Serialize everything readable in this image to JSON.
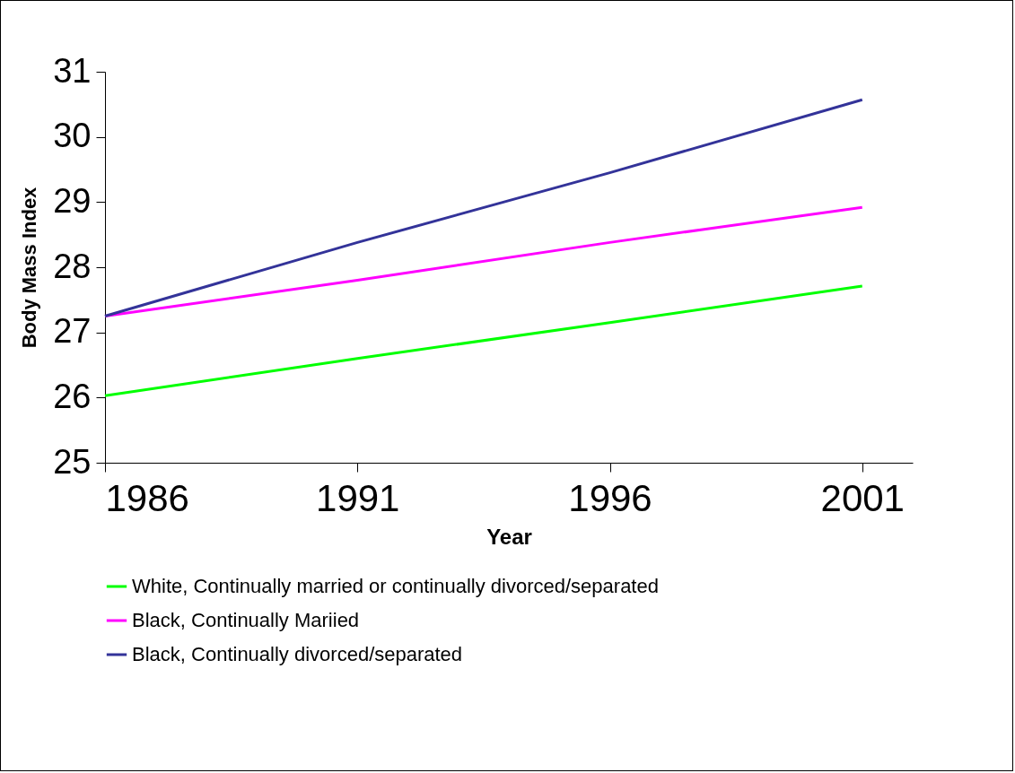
{
  "chart_data": {
    "type": "line",
    "xlabel": "Year",
    "ylabel": "Body Mass Index",
    "x": [
      1986,
      1991,
      1996,
      2001
    ],
    "xlim": [
      1986,
      2002
    ],
    "xticks": [
      1986,
      1991,
      1996,
      2001
    ],
    "ylim": [
      25,
      31
    ],
    "yticks": [
      25,
      26,
      27,
      28,
      29,
      30,
      31
    ],
    "grid": false,
    "legend": "bottom",
    "marker": "none",
    "line_style": "solid",
    "series": [
      {
        "name": "White, Continually married or continually divorced/separated",
        "color": "#00ff00",
        "values": [
          26.03,
          26.6,
          27.15,
          27.71
        ]
      },
      {
        "name": "Black, Continually Mariied",
        "color": "#ff00ff",
        "values": [
          27.25,
          27.8,
          28.38,
          28.92
        ]
      },
      {
        "name": "Black, Continually divorced/separated",
        "color": "#333399",
        "values": [
          27.25,
          28.38,
          29.45,
          30.57
        ]
      }
    ]
  }
}
